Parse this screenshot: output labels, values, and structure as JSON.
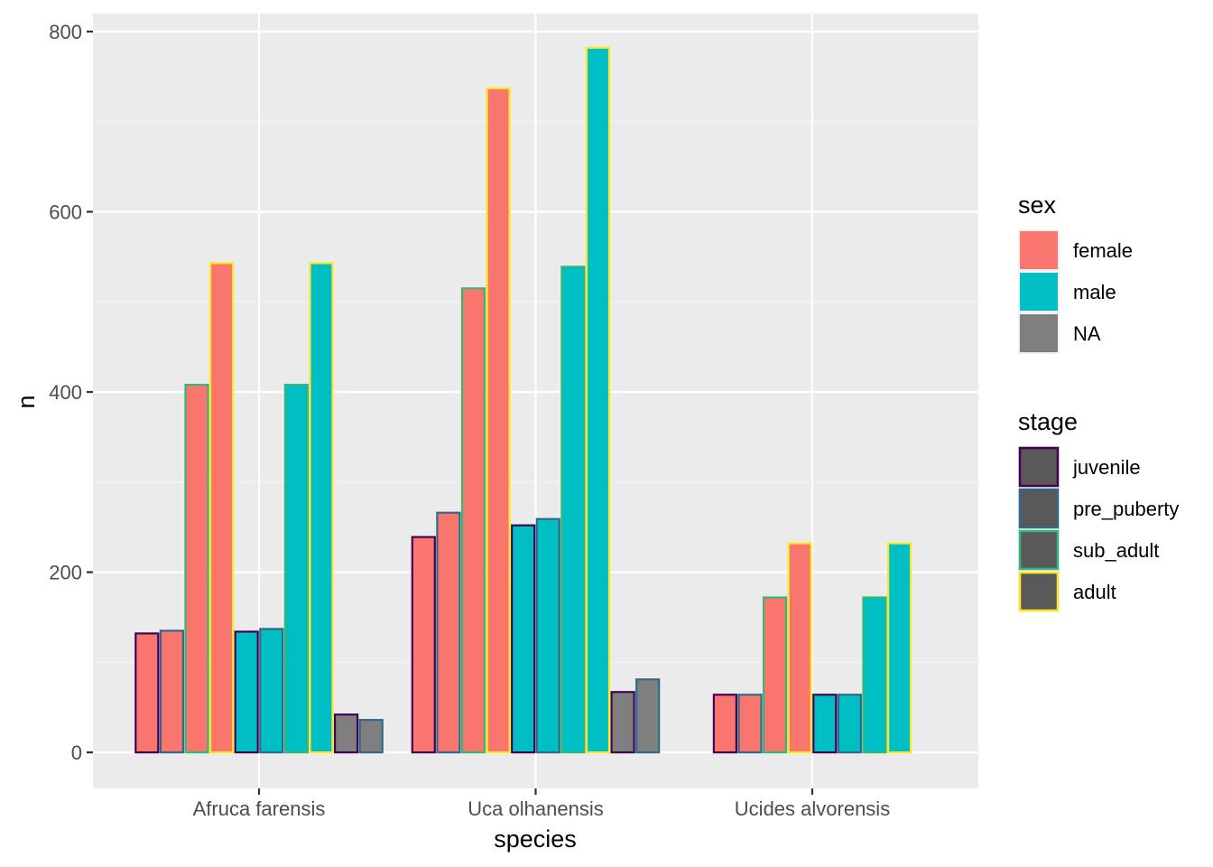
{
  "chart_data": {
    "type": "bar",
    "xlabel": "species",
    "ylabel": "n",
    "categories": [
      "Afruca farensis",
      "Uca olhanensis",
      "Ucides alvorensis"
    ],
    "ylim": [
      -40,
      820
    ],
    "yticks": [
      0,
      200,
      400,
      600,
      800
    ],
    "grid": true,
    "legend_placement": "right",
    "fill_legend": {
      "title": "sex",
      "entries": [
        {
          "label": "female",
          "color": "#F8766D"
        },
        {
          "label": "male",
          "color": "#00BFC4"
        },
        {
          "label": "NA",
          "color": "#7F7F7F"
        }
      ]
    },
    "outline_legend": {
      "title": "stage",
      "entries": [
        {
          "label": "juvenile",
          "color": "#440154"
        },
        {
          "label": "pre_puberty",
          "color": "#31688E"
        },
        {
          "label": "sub_adult",
          "color": "#35B779"
        },
        {
          "label": "adult",
          "color": "#FDE725"
        }
      ]
    },
    "series": [
      {
        "category": "Afruca farensis",
        "sex": "female",
        "stage": "juvenile",
        "value": 132
      },
      {
        "category": "Afruca farensis",
        "sex": "female",
        "stage": "pre_puberty",
        "value": 135
      },
      {
        "category": "Afruca farensis",
        "sex": "female",
        "stage": "sub_adult",
        "value": 408
      },
      {
        "category": "Afruca farensis",
        "sex": "female",
        "stage": "adult",
        "value": 543
      },
      {
        "category": "Afruca farensis",
        "sex": "male",
        "stage": "juvenile",
        "value": 134
      },
      {
        "category": "Afruca farensis",
        "sex": "male",
        "stage": "pre_puberty",
        "value": 137
      },
      {
        "category": "Afruca farensis",
        "sex": "male",
        "stage": "sub_adult",
        "value": 408
      },
      {
        "category": "Afruca farensis",
        "sex": "male",
        "stage": "adult",
        "value": 543
      },
      {
        "category": "Afruca farensis",
        "sex": "NA",
        "stage": "juvenile",
        "value": 42
      },
      {
        "category": "Afruca farensis",
        "sex": "NA",
        "stage": "pre_puberty",
        "value": 36
      },
      {
        "category": "Uca olhanensis",
        "sex": "female",
        "stage": "juvenile",
        "value": 239
      },
      {
        "category": "Uca olhanensis",
        "sex": "female",
        "stage": "pre_puberty",
        "value": 266
      },
      {
        "category": "Uca olhanensis",
        "sex": "female",
        "stage": "sub_adult",
        "value": 515
      },
      {
        "category": "Uca olhanensis",
        "sex": "female",
        "stage": "adult",
        "value": 737
      },
      {
        "category": "Uca olhanensis",
        "sex": "male",
        "stage": "juvenile",
        "value": 252
      },
      {
        "category": "Uca olhanensis",
        "sex": "male",
        "stage": "pre_puberty",
        "value": 259
      },
      {
        "category": "Uca olhanensis",
        "sex": "male",
        "stage": "sub_adult",
        "value": 539
      },
      {
        "category": "Uca olhanensis",
        "sex": "male",
        "stage": "adult",
        "value": 782
      },
      {
        "category": "Uca olhanensis",
        "sex": "NA",
        "stage": "juvenile",
        "value": 67
      },
      {
        "category": "Uca olhanensis",
        "sex": "NA",
        "stage": "pre_puberty",
        "value": 81
      },
      {
        "category": "Ucides alvorensis",
        "sex": "female",
        "stage": "juvenile",
        "value": 64
      },
      {
        "category": "Ucides alvorensis",
        "sex": "female",
        "stage": "pre_puberty",
        "value": 64
      },
      {
        "category": "Ucides alvorensis",
        "sex": "female",
        "stage": "sub_adult",
        "value": 172
      },
      {
        "category": "Ucides alvorensis",
        "sex": "female",
        "stage": "adult",
        "value": 232
      },
      {
        "category": "Ucides alvorensis",
        "sex": "male",
        "stage": "juvenile",
        "value": 64
      },
      {
        "category": "Ucides alvorensis",
        "sex": "male",
        "stage": "pre_puberty",
        "value": 64
      },
      {
        "category": "Ucides alvorensis",
        "sex": "male",
        "stage": "sub_adult",
        "value": 172
      },
      {
        "category": "Ucides alvorensis",
        "sex": "male",
        "stage": "adult",
        "value": 232
      }
    ]
  },
  "colors": {
    "panel_background": "#EBEBEB",
    "grid_major": "#FFFFFF",
    "grid_minor": "#F5F5F5",
    "tick_color": "#333333"
  }
}
